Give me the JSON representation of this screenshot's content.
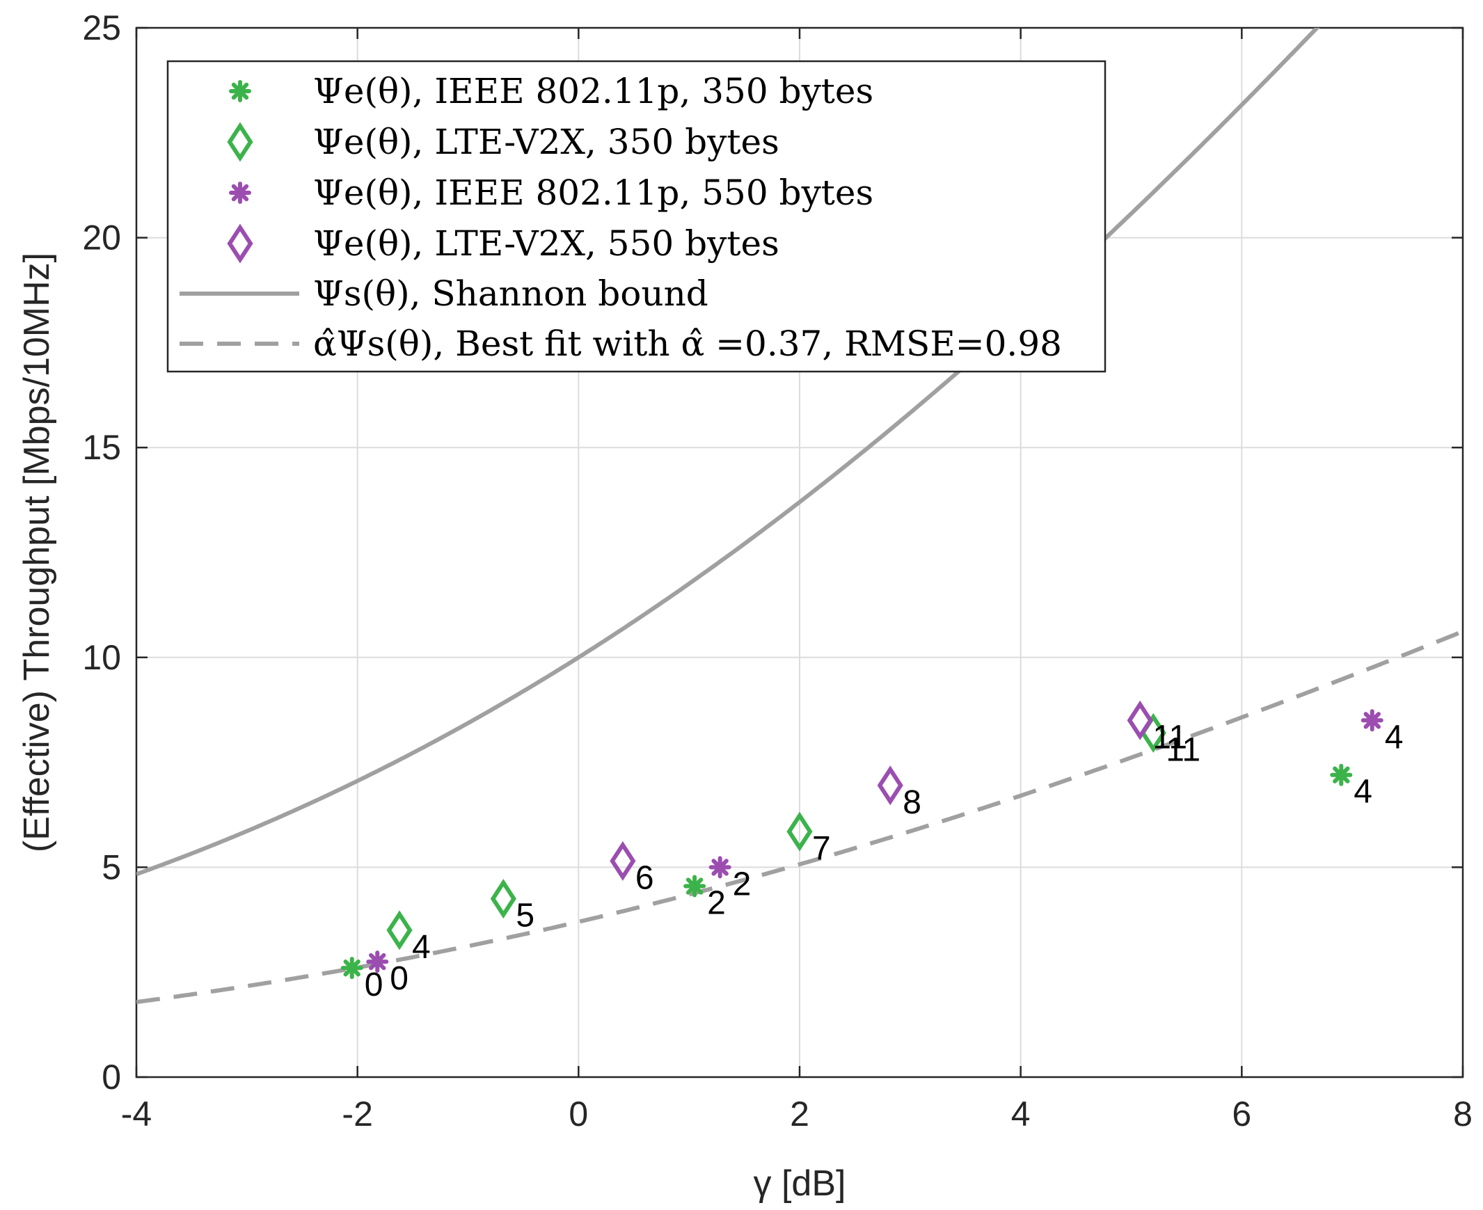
{
  "chart_data": {
    "type": "scatter",
    "title": "",
    "xlabel": "γ [dB]",
    "ylabel": "(Effective) Throughput [Mbps/10MHz]",
    "xlim": [
      -4,
      8
    ],
    "ylim": [
      0,
      25
    ],
    "xticks": [
      -4,
      -2,
      0,
      2,
      4,
      6,
      8
    ],
    "yticks": [
      0,
      5,
      10,
      15,
      20,
      25
    ],
    "grid": true,
    "legend_position": "top-left",
    "colors": {
      "green": "#3cb34a",
      "purple": "#9b4db0",
      "gray": "#a0a0a0",
      "axis": "#262626",
      "grid": "#dcdcdc"
    },
    "series": [
      {
        "name": "Ψe(θ), IEEE 802.11p, 350 bytes",
        "marker": "asterisk",
        "color": "green",
        "points": [
          {
            "x": -2.05,
            "y": 2.6,
            "label": "0"
          },
          {
            "x": 1.05,
            "y": 4.55,
            "label": "2"
          },
          {
            "x": 6.9,
            "y": 7.2,
            "label": "4"
          }
        ]
      },
      {
        "name": "Ψe(θ), LTE-V2X, 350 bytes",
        "marker": "diamond",
        "color": "green",
        "points": [
          {
            "x": -1.62,
            "y": 3.5,
            "label": "4"
          },
          {
            "x": -0.68,
            "y": 4.25,
            "label": "5"
          },
          {
            "x": 2.0,
            "y": 5.85,
            "label": "7"
          },
          {
            "x": 5.2,
            "y": 8.2,
            "label": "11"
          }
        ]
      },
      {
        "name": "Ψe(θ), IEEE 802.11p, 550 bytes",
        "marker": "asterisk",
        "color": "purple",
        "points": [
          {
            "x": -1.82,
            "y": 2.75,
            "label": "0"
          },
          {
            "x": 1.28,
            "y": 5.0,
            "label": "2"
          },
          {
            "x": 7.18,
            "y": 8.5,
            "label": "4"
          }
        ]
      },
      {
        "name": "Ψe(θ), LTE-V2X, 550 bytes",
        "marker": "diamond",
        "color": "purple",
        "points": [
          {
            "x": 0.4,
            "y": 5.15,
            "label": "6"
          },
          {
            "x": 2.82,
            "y": 6.95,
            "label": "8"
          },
          {
            "x": 5.08,
            "y": 8.5,
            "label": "11"
          }
        ]
      },
      {
        "name": "Ψs(θ), Shannon bound",
        "type": "line",
        "style": "solid",
        "color": "gray",
        "formula": "10*log2(1+10^(x/10))"
      },
      {
        "name": "α̂Ψs(θ), Best fit with α̂ =0.37, RMSE=0.98",
        "type": "line",
        "style": "dashed",
        "color": "gray",
        "alpha": 0.37,
        "formula": "0.37*10*log2(1+10^(x/10))"
      }
    ]
  }
}
